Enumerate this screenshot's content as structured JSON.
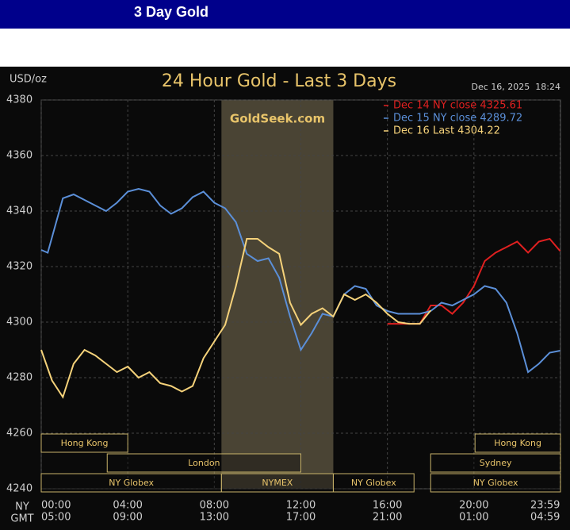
{
  "header": {
    "title": "3 Day Gold"
  },
  "chart_data": {
    "type": "line",
    "title": "24 Hour Gold - Last 3 Days",
    "unit_label": "USD/oz",
    "timestamp": "Dec 16, 2025  18:24",
    "watermark": "GoldSeek.com",
    "xlim": [
      0,
      24
    ],
    "ylim": [
      4240,
      4380
    ],
    "yticks": [
      4240,
      4260,
      4280,
      4300,
      4320,
      4340,
      4360,
      4380
    ],
    "xticks": [
      {
        "value": 0,
        "label": "00:00"
      },
      {
        "value": 4,
        "label": "04:00"
      },
      {
        "value": 8,
        "label": "08:00"
      },
      {
        "value": 12,
        "label": "12:00"
      },
      {
        "value": 16,
        "label": "16:00"
      },
      {
        "value": 20,
        "label": "20:00"
      },
      {
        "value": 23.98,
        "label": "23:59"
      }
    ],
    "x_row_label": "NY",
    "secondary_row_label": "GMT",
    "secondary_tick_labels": [
      "05:00",
      "09:00",
      "13:00",
      "17:00",
      "21:00",
      "01:00",
      "04:59"
    ],
    "grid": true,
    "highlight": [
      8.33,
      13.5
    ],
    "sessions": [
      {
        "label": "Hong Kong",
        "start": 0,
        "end": 4,
        "row": 0
      },
      {
        "label": "London",
        "start": 3.05,
        "end": 12,
        "row": 1
      },
      {
        "label": "NY Globex",
        "start": 0,
        "end": 8.33,
        "row": 2
      },
      {
        "label": "NYMEX",
        "start": 8.33,
        "end": 13.5,
        "row": 2
      },
      {
        "label": "NY Globex",
        "start": 13.5,
        "end": 17.23,
        "row": 2
      },
      {
        "label": "Hong Kong",
        "start": 20.05,
        "end": 24,
        "row": 0
      },
      {
        "label": "Sydney",
        "start": 18,
        "end": 24,
        "row": 1
      },
      {
        "label": "NY Globex",
        "start": 18,
        "end": 24,
        "row": 2
      }
    ],
    "series": [
      {
        "name": "Dec 14 NY close 4325.61",
        "color": "#e02020",
        "x": [
          16,
          16.5,
          17,
          17.5,
          18,
          18.5,
          19,
          19.5,
          20,
          20.5,
          21,
          21.5,
          22,
          22.5,
          23,
          23.5,
          23.98
        ],
        "values": [
          4299.4,
          4299.4,
          4299.4,
          4299.4,
          4306,
          4306,
          4303,
          4307,
          4313,
          4322,
          4325,
          4327,
          4329,
          4325,
          4329,
          4330,
          4325.61
        ]
      },
      {
        "name": "Dec 15 NY close 4289.72",
        "color": "#5b8fd8",
        "x": [
          0,
          0.3,
          1,
          1.5,
          2,
          2.5,
          3,
          3.5,
          4,
          4.5,
          5,
          5.5,
          6,
          6.5,
          7,
          7.5,
          8,
          8.5,
          9,
          9.5,
          10,
          10.5,
          11,
          11.5,
          12,
          12.5,
          13,
          13.5,
          14,
          14.5,
          15,
          15.5,
          16,
          16.5,
          17,
          17.5,
          18,
          18.5,
          19,
          19.5,
          20,
          20.5,
          21,
          21.5,
          22,
          22.5,
          23,
          23.5,
          23.98
        ],
        "values": [
          4326,
          4325,
          4344.6,
          4346,
          4344,
          4342,
          4340,
          4343,
          4347,
          4348,
          4347,
          4342,
          4339,
          4341,
          4345,
          4347,
          4343,
          4341,
          4336,
          4324.6,
          4322,
          4323,
          4316,
          4302,
          4290,
          4296,
          4303,
          4302,
          4310,
          4313,
          4312,
          4306,
          4304,
          4303,
          4303,
          4303,
          4304,
          4307,
          4306,
          4308,
          4310,
          4313,
          4312,
          4307,
          4296,
          4282,
          4285,
          4289,
          4289.72
        ]
      },
      {
        "name": "Dec 16 Last 4304.22",
        "color": "#f5d27a",
        "x": [
          0,
          0.5,
          1,
          1.5,
          2,
          2.5,
          3,
          3.5,
          4,
          4.5,
          5,
          5.5,
          6,
          6.5,
          7,
          7.5,
          8,
          8.5,
          9,
          9.5,
          10,
          10.5,
          11,
          11.5,
          12,
          12.5,
          13,
          13.5,
          14,
          14.5,
          15,
          15.5,
          16,
          16.5,
          17,
          17.5,
          18
        ],
        "values": [
          4290,
          4279,
          4273,
          4285,
          4290,
          4288,
          4285,
          4282,
          4284,
          4280,
          4282,
          4278,
          4277,
          4275,
          4277,
          4287,
          4293,
          4299,
          4313,
          4330,
          4330,
          4327,
          4324.6,
          4307,
          4299,
          4303,
          4305,
          4302,
          4310,
          4308,
          4310,
          4307,
          4303,
          4300,
          4299.4,
          4299.4,
          4304.22
        ]
      }
    ]
  }
}
